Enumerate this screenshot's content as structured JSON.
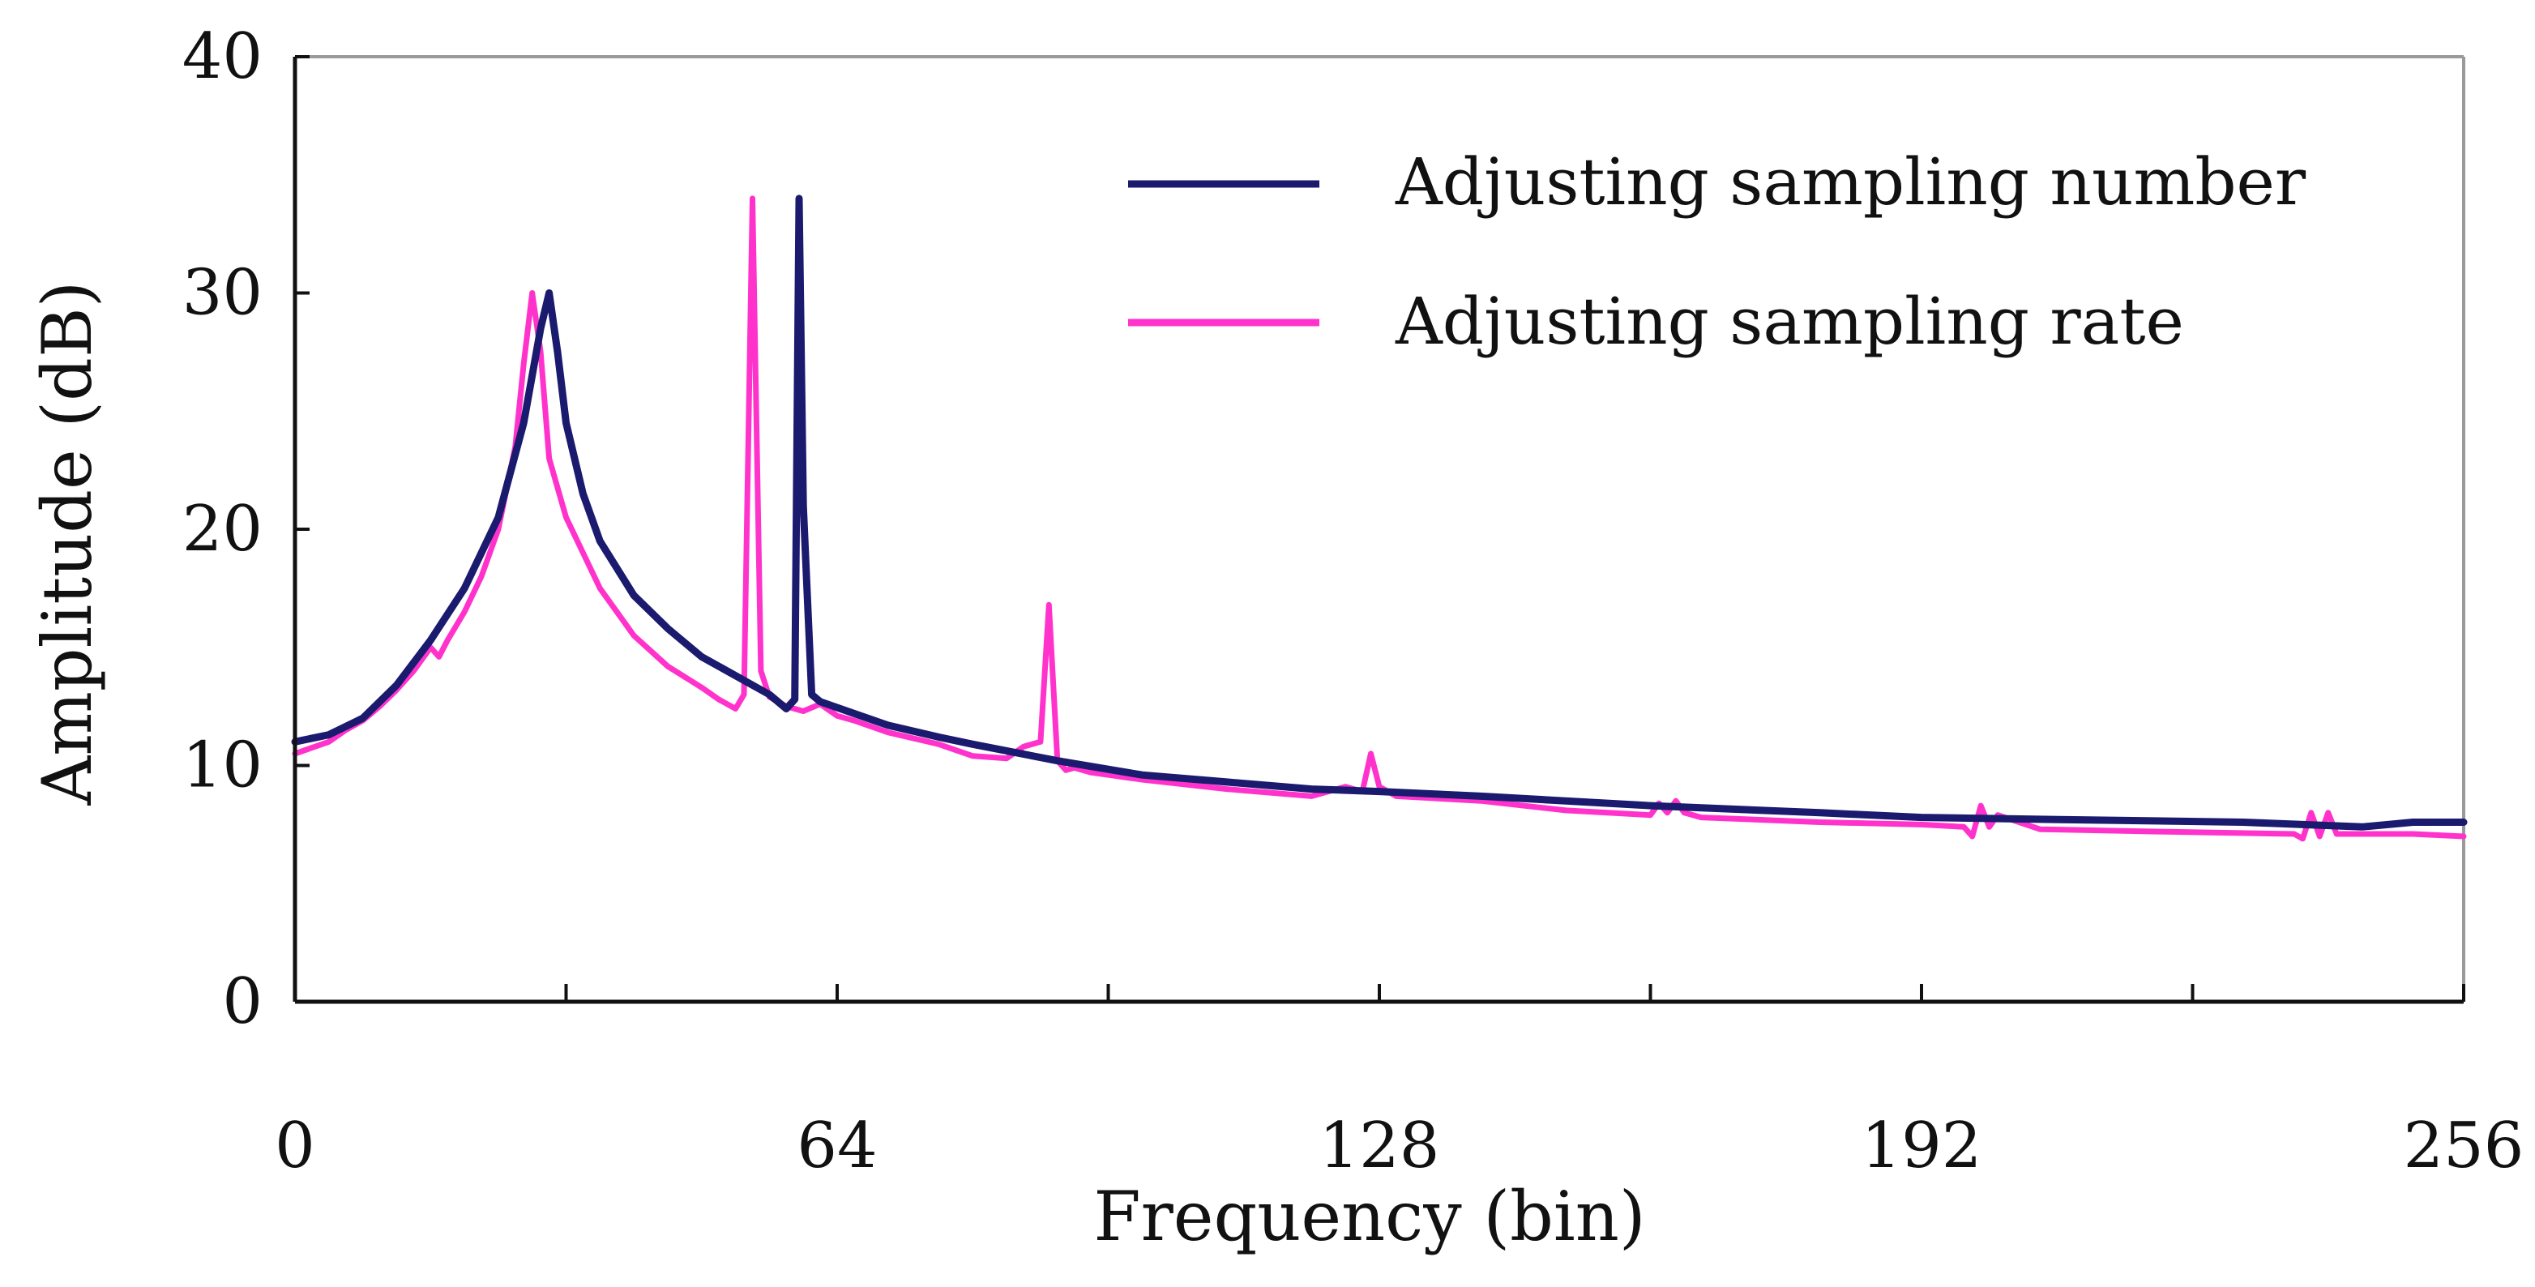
{
  "chart_data": {
    "type": "line",
    "title": "",
    "xlabel": "Frequency (bin)",
    "ylabel": "Amplitude (dB)",
    "xlim": [
      0,
      256
    ],
    "ylim": [
      0,
      40
    ],
    "xticks": [
      0,
      64,
      128,
      192,
      256
    ],
    "yticks": [
      0,
      10,
      20,
      30,
      40
    ],
    "minor_xticks": [
      32,
      96,
      160,
      224
    ],
    "grid": false,
    "legend_position": "top-right",
    "series": [
      {
        "name": "Adjusting sampling number",
        "color": "#1a1a6e",
        "x": [
          0,
          4,
          8,
          12,
          16,
          20,
          24,
          27,
          29,
          30,
          31,
          32,
          34,
          36,
          40,
          44,
          48,
          52,
          56,
          58,
          59,
          59.5,
          60,
          61,
          62,
          66,
          70,
          76,
          80,
          90,
          100,
          110,
          120,
          128,
          140,
          160,
          180,
          192,
          210,
          230,
          244,
          250,
          256
        ],
        "y": [
          11.0,
          11.3,
          12.0,
          13.4,
          15.3,
          17.5,
          20.5,
          24.5,
          28.5,
          30.0,
          27.5,
          24.5,
          21.5,
          19.5,
          17.2,
          15.8,
          14.6,
          13.8,
          13.0,
          12.4,
          12.8,
          34.0,
          21.0,
          13.0,
          12.7,
          12.2,
          11.7,
          11.2,
          10.9,
          10.2,
          9.6,
          9.3,
          9.0,
          8.9,
          8.7,
          8.3,
          8.0,
          7.8,
          7.7,
          7.6,
          7.4,
          7.6,
          7.6
        ]
      },
      {
        "name": "Adjusting sampling rate",
        "color": "#ff33cc",
        "x": [
          0,
          4,
          6,
          8,
          10,
          12,
          14,
          16,
          17,
          18,
          20,
          22,
          24,
          26,
          27,
          28,
          29,
          30,
          32,
          36,
          40,
          44,
          48,
          50,
          52,
          53,
          54,
          55,
          56,
          57,
          58,
          60,
          62,
          64,
          66,
          70,
          76,
          80,
          84,
          86,
          88,
          89,
          90,
          91,
          92,
          94,
          100,
          110,
          120,
          124,
          126,
          127,
          128,
          130,
          140,
          150,
          160,
          161,
          162,
          163,
          164,
          166,
          180,
          192,
          197,
          198,
          199,
          200,
          201,
          206,
          220,
          236,
          237,
          238,
          239,
          240,
          241,
          250,
          256
        ],
        "y": [
          10.5,
          11.0,
          11.5,
          11.9,
          12.5,
          13.2,
          14.0,
          15.0,
          14.6,
          15.3,
          16.5,
          18.0,
          20.0,
          23.5,
          27.0,
          30.0,
          27.5,
          23.0,
          20.5,
          17.5,
          15.5,
          14.2,
          13.3,
          12.8,
          12.4,
          13.0,
          34.0,
          14.0,
          12.9,
          12.7,
          12.5,
          12.3,
          12.6,
          12.1,
          11.9,
          11.4,
          10.9,
          10.4,
          10.3,
          10.8,
          11.0,
          16.8,
          10.2,
          9.8,
          9.9,
          9.7,
          9.4,
          9.0,
          8.7,
          9.1,
          8.9,
          10.5,
          9.1,
          8.7,
          8.5,
          8.1,
          7.9,
          8.4,
          8.0,
          8.5,
          8.0,
          7.8,
          7.6,
          7.5,
          7.4,
          7.0,
          8.3,
          7.4,
          7.9,
          7.3,
          7.2,
          7.1,
          6.9,
          8.0,
          7.0,
          8.0,
          7.1,
          7.1,
          7.0
        ]
      }
    ]
  }
}
